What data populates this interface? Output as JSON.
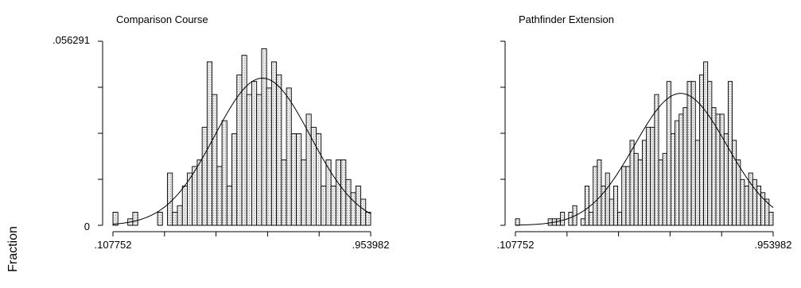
{
  "shared": {
    "ylabel": "Fraction"
  },
  "colors": {
    "bar_fill": "#e9e9e9",
    "bar_dots": "#9a9a9a",
    "stroke": "#000000",
    "background": "#ffffff"
  },
  "chart_data": [
    {
      "type": "bar",
      "title": "Comparison Course",
      "xlabel": "",
      "ylabel": "Fraction",
      "xlim": [
        0.107752,
        0.953982
      ],
      "ylim": [
        0,
        0.056291
      ],
      "x_ticks_labeled": [
        ".107752",
        ".953982"
      ],
      "y_ticks_labeled": [
        ".056291",
        "0"
      ],
      "overlay": "normal density curve",
      "bin_values": [
        0.004,
        0.0,
        0.0,
        0.002,
        0.004,
        0.0,
        0.0,
        0.0,
        0.0,
        0.004,
        0.0,
        0.016,
        0.004,
        0.006,
        0.012,
        0.016,
        0.018,
        0.02,
        0.03,
        0.05,
        0.04,
        0.018,
        0.032,
        0.012,
        0.028,
        0.046,
        0.052,
        0.04,
        0.044,
        0.04,
        0.054,
        0.042,
        0.05,
        0.046,
        0.02,
        0.042,
        0.028,
        0.028,
        0.02,
        0.034,
        0.03,
        0.028,
        0.012,
        0.02,
        0.012,
        0.02,
        0.02,
        0.014,
        0.01,
        0.012,
        0.008,
        0.004
      ]
    },
    {
      "type": "bar",
      "title": "Pathfinder Extension",
      "xlabel": "",
      "ylabel": "",
      "xlim": [
        0.107752,
        0.953982
      ],
      "ylim": [
        0,
        0.056291
      ],
      "x_ticks_labeled": [
        ".107752",
        ".953982"
      ],
      "y_ticks_labeled": [],
      "overlay": "normal density curve",
      "bin_values": [
        0.002,
        0.0,
        0.0,
        0.0,
        0.0,
        0.0,
        0.0,
        0.0,
        0.002,
        0.002,
        0.002,
        0.004,
        0.0,
        0.004,
        0.006,
        0.0,
        0.002,
        0.012,
        0.004,
        0.018,
        0.02,
        0.012,
        0.016,
        0.008,
        0.012,
        0.004,
        0.018,
        0.018,
        0.026,
        0.022,
        0.02,
        0.026,
        0.03,
        0.03,
        0.04,
        0.02,
        0.022,
        0.044,
        0.028,
        0.032,
        0.034,
        0.036,
        0.044,
        0.044,
        0.026,
        0.046,
        0.05,
        0.044,
        0.036,
        0.034,
        0.034,
        0.028,
        0.044,
        0.026,
        0.02,
        0.014,
        0.012,
        0.016,
        0.014,
        0.012,
        0.01,
        0.008,
        0.004
      ]
    }
  ]
}
